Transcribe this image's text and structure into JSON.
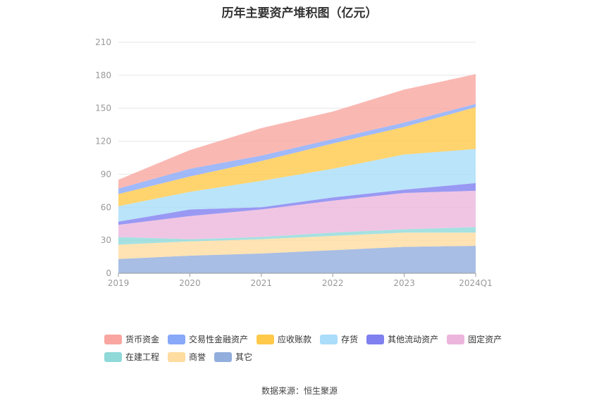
{
  "title": "历年主要资产堆积图（亿元）",
  "source": "数据来源：恒生聚源",
  "chart_data": {
    "type": "area",
    "stacked": true,
    "title": "历年主要资产堆积图（亿元）",
    "xlabel": "",
    "ylabel": "",
    "ylim": [
      0,
      210
    ],
    "yticks": [
      0,
      30,
      60,
      90,
      120,
      150,
      180,
      210
    ],
    "grid": true,
    "legend_position": "bottom",
    "categories": [
      "2019",
      "2020",
      "2021",
      "2022",
      "2023",
      "2024Q1"
    ],
    "series": [
      {
        "name": "其它",
        "color": "#92aedd",
        "values": [
          13,
          16,
          18,
          21,
          24,
          25
        ]
      },
      {
        "name": "商誉",
        "color": "#ffdca0",
        "values": [
          13,
          13,
          13,
          13,
          13,
          12
        ]
      },
      {
        "name": "在建工程",
        "color": "#8fd9d9",
        "values": [
          7,
          2,
          2,
          3,
          3,
          5
        ]
      },
      {
        "name": "固定资产",
        "color": "#ecb6dc",
        "values": [
          11,
          21,
          25,
          29,
          33,
          33
        ]
      },
      {
        "name": "其他流动资产",
        "color": "#8080f0",
        "values": [
          3,
          6,
          2,
          3,
          3,
          7
        ]
      },
      {
        "name": "存货",
        "color": "#a9ddf9",
        "values": [
          14,
          16,
          24,
          26,
          32,
          31
        ]
      },
      {
        "name": "应收账款",
        "color": "#ffc94a",
        "values": [
          11,
          14,
          18,
          23,
          25,
          38
        ]
      },
      {
        "name": "交易性金融资产",
        "color": "#88a8f8",
        "values": [
          5,
          7,
          5,
          4,
          4,
          3
        ]
      },
      {
        "name": "货币资金",
        "color": "#f9a6a0",
        "values": [
          8,
          17,
          25,
          25,
          30,
          27
        ]
      }
    ]
  },
  "legend_rows": [
    [
      "货币资金",
      "交易性金融资产",
      "应收账款",
      "存货",
      "其他流动资产",
      "固定资产"
    ],
    [
      "在建工程",
      "商誉",
      "其它"
    ]
  ]
}
